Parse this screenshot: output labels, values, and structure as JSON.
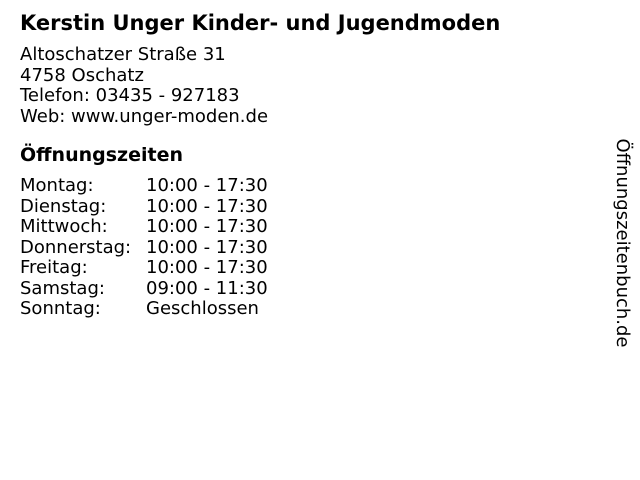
{
  "business": {
    "name": "Kerstin Unger Kinder- und Jugendmoden",
    "street": "Altoschatzer Straße 31",
    "city": "4758 Oschatz",
    "phone": {
      "label": "Telefon:",
      "value": "03435 - 927183"
    },
    "web": {
      "label": "Web:",
      "value": "www.unger-moden.de"
    }
  },
  "hours": {
    "heading": "Öffnungszeiten",
    "rows": [
      {
        "day": "Montag:",
        "time": "10:00 - 17:30"
      },
      {
        "day": "Dienstag:",
        "time": "10:00 - 17:30"
      },
      {
        "day": "Mittwoch:",
        "time": "10:00 - 17:30"
      },
      {
        "day": "Donnerstag:",
        "time": "10:00 - 17:30"
      },
      {
        "day": "Freitag:",
        "time": "10:00 - 17:30"
      },
      {
        "day": "Samstag:",
        "time": "09:00 - 11:30"
      },
      {
        "day": "Sonntag:",
        "time": "Geschlossen"
      }
    ]
  },
  "branding": {
    "site_name": "Öffnungszeitenbuch.de"
  },
  "colors": {
    "text": "#000000",
    "background": "#ffffff"
  }
}
